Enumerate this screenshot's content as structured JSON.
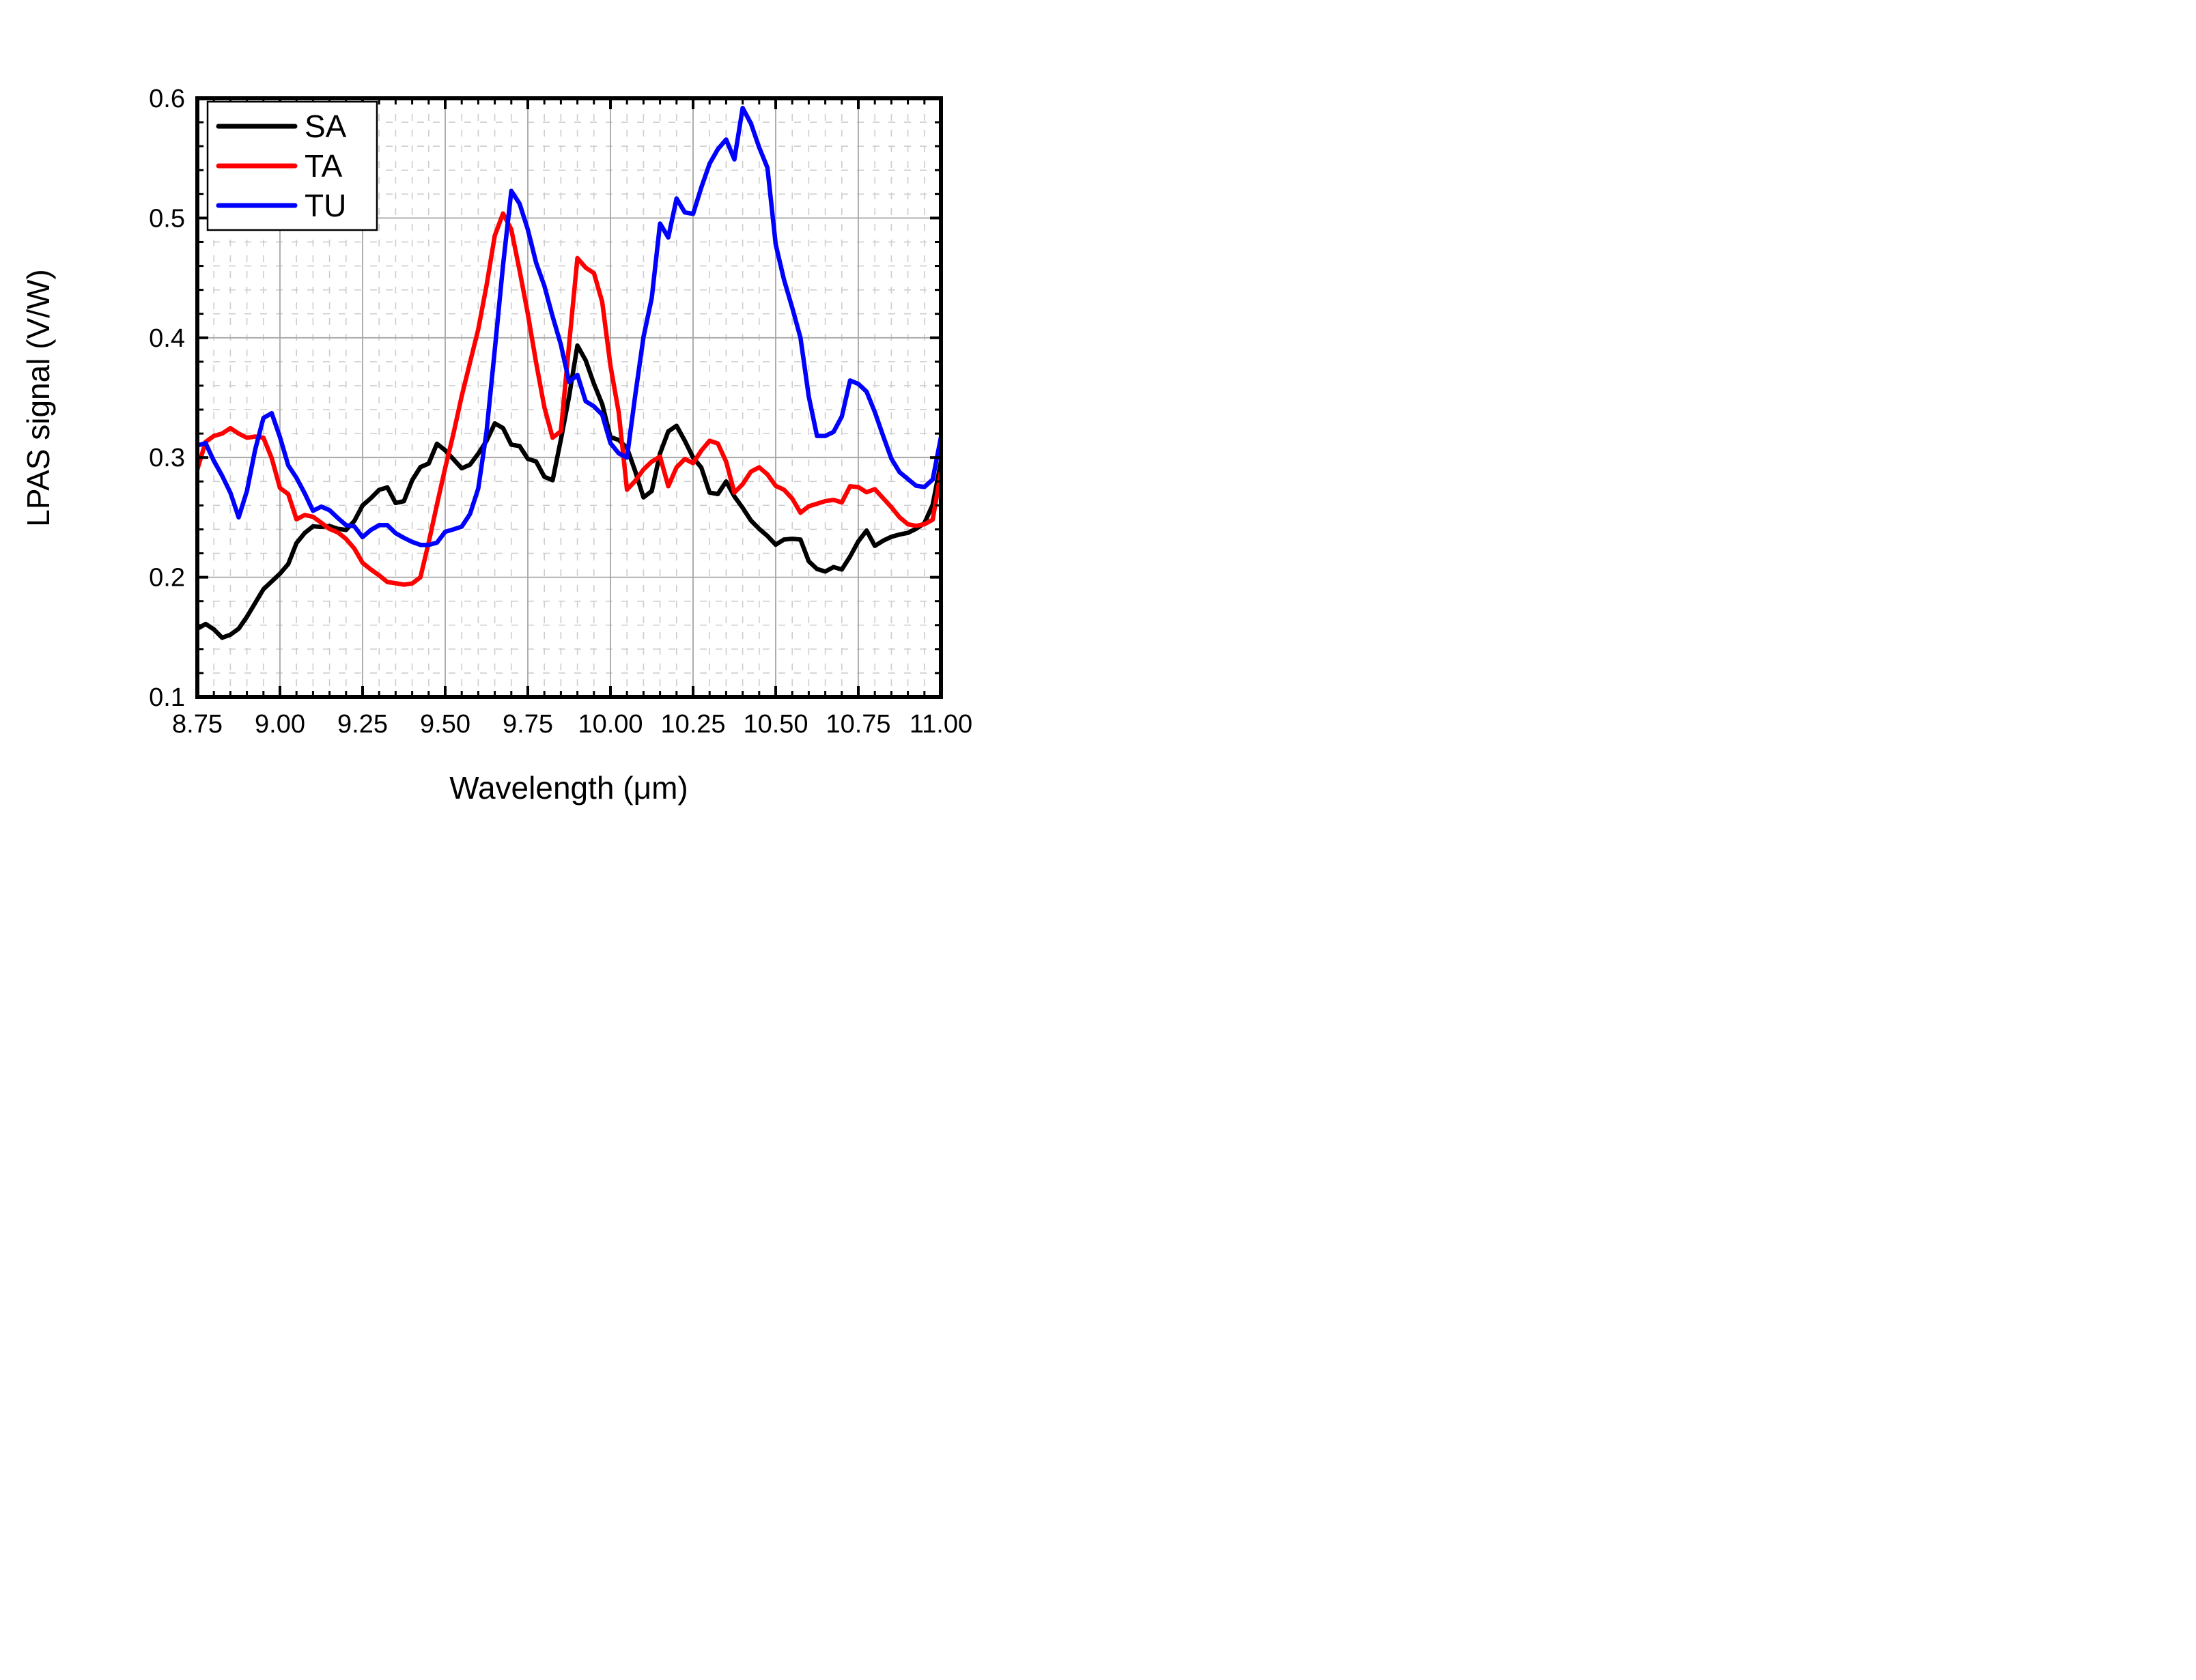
{
  "chart_data": {
    "type": "line",
    "title": "",
    "xlabel": "Wavelength (μm)",
    "ylabel": "LPAS signal (V/W)",
    "xlim": [
      8.75,
      11.0
    ],
    "ylim": [
      0.1,
      0.6
    ],
    "x_major_ticks": [
      8.75,
      9.0,
      9.25,
      9.5,
      9.75,
      10.0,
      10.25,
      10.5,
      10.75,
      11.0
    ],
    "x_tick_labels": [
      "8.75",
      "9.00",
      "9.25",
      "9.50",
      "9.75",
      "10.00",
      "10.25",
      "10.50",
      "10.75",
      "11.00"
    ],
    "y_major_ticks": [
      0.1,
      0.2,
      0.3,
      0.4,
      0.5,
      0.6
    ],
    "y_tick_labels": [
      "0.1",
      "0.2",
      "0.3",
      "0.4",
      "0.5",
      "0.6"
    ],
    "x_minor_step": 0.05,
    "y_minor_step": 0.02,
    "grid": {
      "major_color": "#a6a6a6",
      "minor_color": "#cdcdcd",
      "minor_dashed": true,
      "grid_on": true
    },
    "legend": {
      "position": "top-left",
      "entries": [
        {
          "label": "SA",
          "color": "#000000"
        },
        {
          "label": "TA",
          "color": "#ff0000"
        },
        {
          "label": "TU",
          "color": "#0000ff"
        }
      ]
    },
    "x": [
      8.75,
      8.775,
      8.8,
      8.825,
      8.85,
      8.875,
      8.9,
      8.925,
      8.95,
      8.975,
      9.0,
      9.025,
      9.05,
      9.075,
      9.1,
      9.125,
      9.15,
      9.175,
      9.2,
      9.225,
      9.25,
      9.275,
      9.3,
      9.325,
      9.35,
      9.375,
      9.4,
      9.425,
      9.45,
      9.475,
      9.5,
      9.525,
      9.55,
      9.575,
      9.6,
      9.625,
      9.65,
      9.675,
      9.7,
      9.725,
      9.75,
      9.775,
      9.8,
      9.825,
      9.85,
      9.875,
      9.9,
      9.925,
      9.95,
      9.975,
      10.0,
      10.025,
      10.05,
      10.075,
      10.1,
      10.125,
      10.15,
      10.175,
      10.2,
      10.225,
      10.25,
      10.275,
      10.3,
      10.325,
      10.35,
      10.375,
      10.4,
      10.425,
      10.45,
      10.475,
      10.5,
      10.525,
      10.55,
      10.575,
      10.6,
      10.625,
      10.65,
      10.675,
      10.7,
      10.725,
      10.75,
      10.775,
      10.8,
      10.825,
      10.85,
      10.875,
      10.9,
      10.925,
      10.95,
      10.975,
      11.0
    ],
    "series": [
      {
        "name": "SA",
        "color": "#000000",
        "values": [
          0.157,
          0.161,
          0.1565,
          0.1495,
          0.152,
          0.157,
          0.167,
          0.1785,
          0.19,
          0.1965,
          0.203,
          0.211,
          0.2285,
          0.237,
          0.2425,
          0.242,
          0.2428,
          0.2405,
          0.2395,
          0.247,
          0.26,
          0.266,
          0.273,
          0.275,
          0.262,
          0.2635,
          0.281,
          0.292,
          0.295,
          0.3115,
          0.306,
          0.2985,
          0.291,
          0.294,
          0.3032,
          0.3139,
          0.3285,
          0.3246,
          0.3107,
          0.3096,
          0.2989,
          0.2967,
          0.2839,
          0.281,
          0.315,
          0.3513,
          0.3935,
          0.3812,
          0.3616,
          0.3446,
          0.317,
          0.3147,
          0.308,
          0.2885,
          0.2667,
          0.272,
          0.3034,
          0.3218,
          0.3265,
          0.314,
          0.3,
          0.2915,
          0.2707,
          0.2695,
          0.28,
          0.2675,
          0.258,
          0.2474,
          0.2404,
          0.2345,
          0.2272,
          0.2315,
          0.2321,
          0.2315,
          0.2133,
          0.2069,
          0.2048,
          0.2085,
          0.2065,
          0.2173,
          0.23,
          0.239,
          0.2262,
          0.2305,
          0.2338,
          0.2357,
          0.2371,
          0.2405,
          0.2452,
          0.2605,
          0.2965
        ]
      },
      {
        "name": "TA",
        "color": "#ff0000",
        "values": [
          0.29,
          0.313,
          0.318,
          0.32,
          0.3245,
          0.32,
          0.3165,
          0.3175,
          0.3165,
          0.2995,
          0.2745,
          0.2695,
          0.2484,
          0.252,
          0.2505,
          0.2455,
          0.2403,
          0.2375,
          0.232,
          0.224,
          0.212,
          0.2065,
          0.2016,
          0.196,
          0.195,
          0.1938,
          0.1948,
          0.2,
          0.229,
          0.2607,
          0.2914,
          0.32,
          0.3514,
          0.3793,
          0.4071,
          0.4436,
          0.4853,
          0.5038,
          0.4904,
          0.4563,
          0.4199,
          0.3793,
          0.342,
          0.3165,
          0.322,
          0.395,
          0.4665,
          0.4586,
          0.454,
          0.43,
          0.3766,
          0.3377,
          0.2731,
          0.2805,
          0.29,
          0.2966,
          0.3007,
          0.276,
          0.2918,
          0.2988,
          0.2953,
          0.3058,
          0.314,
          0.3117,
          0.2965,
          0.2707,
          0.2777,
          0.2882,
          0.2918,
          0.2859,
          0.2763,
          0.2731,
          0.2657,
          0.2539,
          0.2593,
          0.2614,
          0.2636,
          0.2646,
          0.2625,
          0.276,
          0.2753,
          0.271,
          0.2736,
          0.266,
          0.2585,
          0.25,
          0.2443,
          0.2429,
          0.2443,
          0.2481,
          0.288
        ]
      },
      {
        "name": "TU",
        "color": "#0000ff",
        "values": [
          0.31,
          0.312,
          0.2972,
          0.2848,
          0.2706,
          0.25,
          0.272,
          0.3066,
          0.333,
          0.337,
          0.317,
          0.2935,
          0.283,
          0.27,
          0.2555,
          0.259,
          0.256,
          0.2495,
          0.2435,
          0.2425,
          0.2335,
          0.2395,
          0.2435,
          0.2435,
          0.2368,
          0.2329,
          0.2295,
          0.227,
          0.227,
          0.2289,
          0.238,
          0.24,
          0.2423,
          0.2528,
          0.2742,
          0.3214,
          0.39,
          0.4606,
          0.5227,
          0.512,
          0.4904,
          0.4627,
          0.4434,
          0.4178,
          0.3942,
          0.363,
          0.369,
          0.347,
          0.3427,
          0.3358,
          0.312,
          0.3035,
          0.3,
          0.352,
          0.4007,
          0.4333,
          0.4954,
          0.4838,
          0.5163,
          0.5047,
          0.5035,
          0.5256,
          0.5454,
          0.5575,
          0.5656,
          0.549,
          0.5919,
          0.579,
          0.559,
          0.542,
          0.478,
          0.4486,
          0.4251,
          0.4,
          0.351,
          0.318,
          0.318,
          0.3214,
          0.3342,
          0.3643,
          0.3615,
          0.355,
          0.3379,
          0.3181,
          0.299,
          0.2877,
          0.282,
          0.2764,
          0.2754,
          0.2816,
          0.317
        ]
      }
    ]
  }
}
